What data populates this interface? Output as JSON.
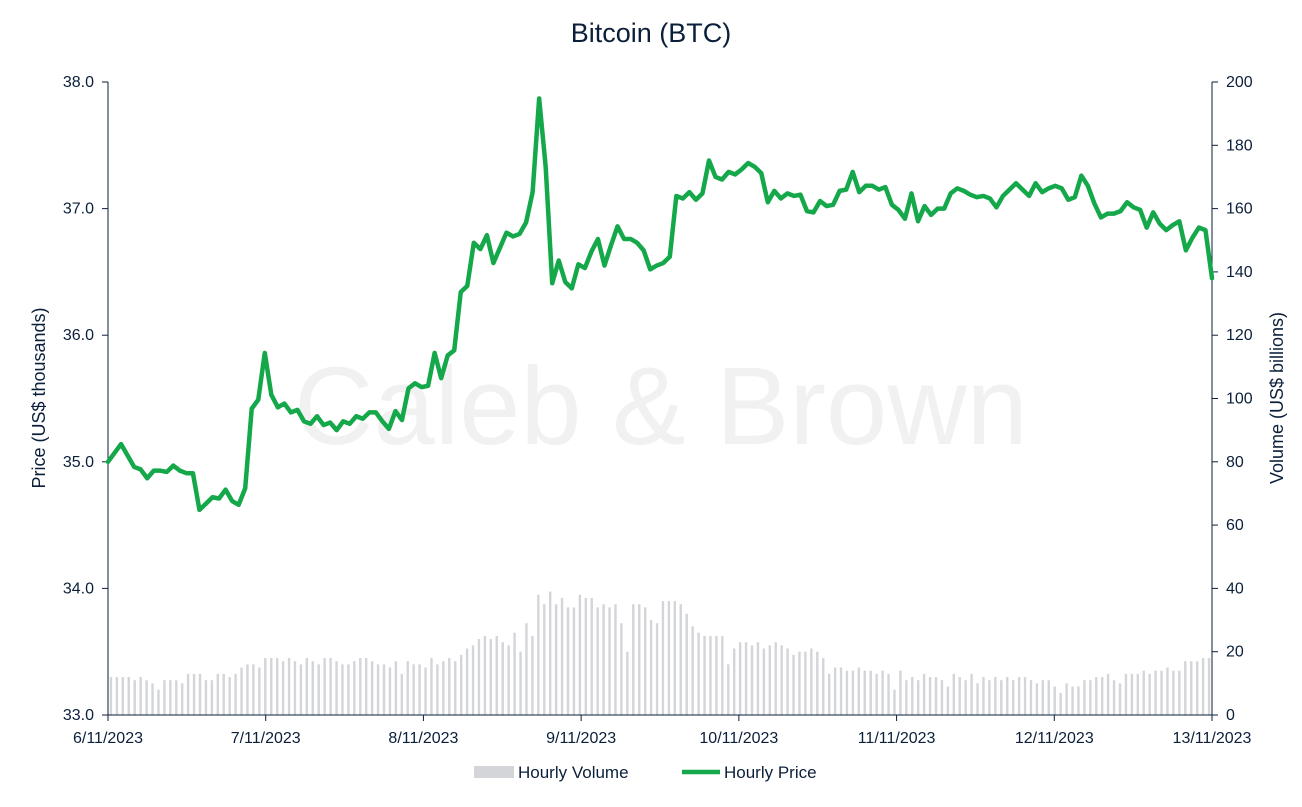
{
  "chart_data": {
    "type": "line",
    "title": "Bitcoin (BTC)",
    "watermark": "Caleb & Brown",
    "ylabel": "Price (US$ thousands)",
    "y2label": "Volume (US$ billions)",
    "ylim": [
      33.0,
      38.0
    ],
    "y2lim": [
      0,
      200
    ],
    "yticks": [
      "33.0",
      "34.0",
      "35.0",
      "36.0",
      "37.0",
      "38.0"
    ],
    "y2ticks": [
      "0",
      "20",
      "40",
      "60",
      "80",
      "100",
      "120",
      "140",
      "160",
      "180",
      "200"
    ],
    "xlim": [
      0,
      7
    ],
    "xticks": [
      "6/11/2023",
      "7/11/2023",
      "8/11/2023",
      "9/11/2023",
      "10/11/2023",
      "11/11/2023",
      "12/11/2023",
      "13/11/2023"
    ],
    "grid": false,
    "legend_position": "bottom-center",
    "colors": {
      "price": "#14a84a",
      "volume": "#d3d5d9",
      "text": "#0b1f3a",
      "axis": "#0b1f3a"
    },
    "series": [
      {
        "name": "Hourly Volume",
        "kind": "bar",
        "axis": "right",
        "values": [
          12,
          12,
          12,
          12,
          11,
          12,
          11,
          10,
          8,
          11,
          11,
          11,
          10,
          13,
          13,
          13,
          11,
          11,
          13,
          13,
          12,
          13,
          15,
          16,
          16,
          15,
          18,
          18,
          18,
          17,
          18,
          17,
          16,
          18,
          17,
          16,
          18,
          18,
          17,
          16,
          16,
          17,
          18,
          18,
          17,
          16,
          16,
          15,
          17,
          13,
          17,
          16,
          16,
          15,
          18,
          16,
          17,
          18,
          17,
          19,
          21,
          22,
          24,
          25,
          24,
          25,
          23,
          22,
          26,
          20,
          29,
          25,
          38,
          35,
          39,
          35,
          37,
          34,
          34,
          38,
          37,
          37,
          34,
          35,
          34,
          35,
          29,
          20,
          35,
          35,
          34,
          30,
          29,
          36,
          36,
          36,
          35,
          32,
          28,
          26,
          25,
          25,
          25,
          25,
          16,
          21,
          23,
          23,
          22,
          23,
          21,
          22,
          23,
          22,
          21,
          19,
          20,
          20,
          21,
          20,
          18,
          13,
          15,
          15,
          14,
          14,
          15,
          14,
          14,
          13,
          14,
          13,
          8,
          14,
          11,
          12,
          11,
          13,
          12,
          12,
          11,
          9,
          13,
          12,
          11,
          13,
          10,
          12,
          11,
          12,
          11,
          12,
          11,
          12,
          12,
          11,
          10,
          11,
          11,
          9,
          7,
          10,
          9,
          9,
          11,
          11,
          12,
          12,
          13,
          11,
          10,
          13,
          13,
          13,
          14,
          13,
          14,
          14,
          15,
          14,
          14,
          17,
          17,
          17,
          18,
          18
        ]
      },
      {
        "name": "Hourly Price",
        "kind": "line",
        "axis": "left",
        "values": [
          35.0,
          35.07,
          35.14,
          35.05,
          34.96,
          34.94,
          34.87,
          34.93,
          34.93,
          34.92,
          34.97,
          34.93,
          34.91,
          34.91,
          34.62,
          34.67,
          34.72,
          34.71,
          34.78,
          34.69,
          34.66,
          34.79,
          35.42,
          35.49,
          35.86,
          35.53,
          35.43,
          35.46,
          35.39,
          35.41,
          35.32,
          35.3,
          35.36,
          35.29,
          35.31,
          35.25,
          35.32,
          35.3,
          35.36,
          35.34,
          35.39,
          35.39,
          35.32,
          35.26,
          35.4,
          35.33,
          35.58,
          35.62,
          35.59,
          35.6,
          35.86,
          35.66,
          35.84,
          35.88,
          36.34,
          36.39,
          36.73,
          36.68,
          36.79,
          36.57,
          36.69,
          36.81,
          36.78,
          36.8,
          36.89,
          37.13,
          37.87,
          37.33,
          36.41,
          36.59,
          36.42,
          36.37,
          36.56,
          36.53,
          36.66,
          36.76,
          36.55,
          36.71,
          36.86,
          36.76,
          36.76,
          36.73,
          36.67,
          36.52,
          36.55,
          36.57,
          36.62,
          37.1,
          37.08,
          37.13,
          37.07,
          37.12,
          37.38,
          37.25,
          37.23,
          37.29,
          37.27,
          37.31,
          37.36,
          37.33,
          37.28,
          37.05,
          37.14,
          37.08,
          37.12,
          37.1,
          37.11,
          36.98,
          36.97,
          37.06,
          37.02,
          37.03,
          37.14,
          37.15,
          37.29,
          37.13,
          37.18,
          37.18,
          37.15,
          37.17,
          37.03,
          36.99,
          36.92,
          37.12,
          36.9,
          37.02,
          36.95,
          37.0,
          37.0,
          37.12,
          37.16,
          37.14,
          37.11,
          37.09,
          37.1,
          37.08,
          37.01,
          37.1,
          37.15,
          37.2,
          37.15,
          37.1,
          37.2,
          37.13,
          37.16,
          37.18,
          37.16,
          37.07,
          37.09,
          37.26,
          37.18,
          37.04,
          36.93,
          36.96,
          36.96,
          36.98,
          37.05,
          37.01,
          36.99,
          36.85,
          36.97,
          36.88,
          36.83,
          36.87,
          36.9,
          36.67,
          36.77,
          36.85,
          36.83,
          36.45
        ]
      }
    ],
    "legend": [
      "Hourly Volume",
      "Hourly Price"
    ]
  }
}
